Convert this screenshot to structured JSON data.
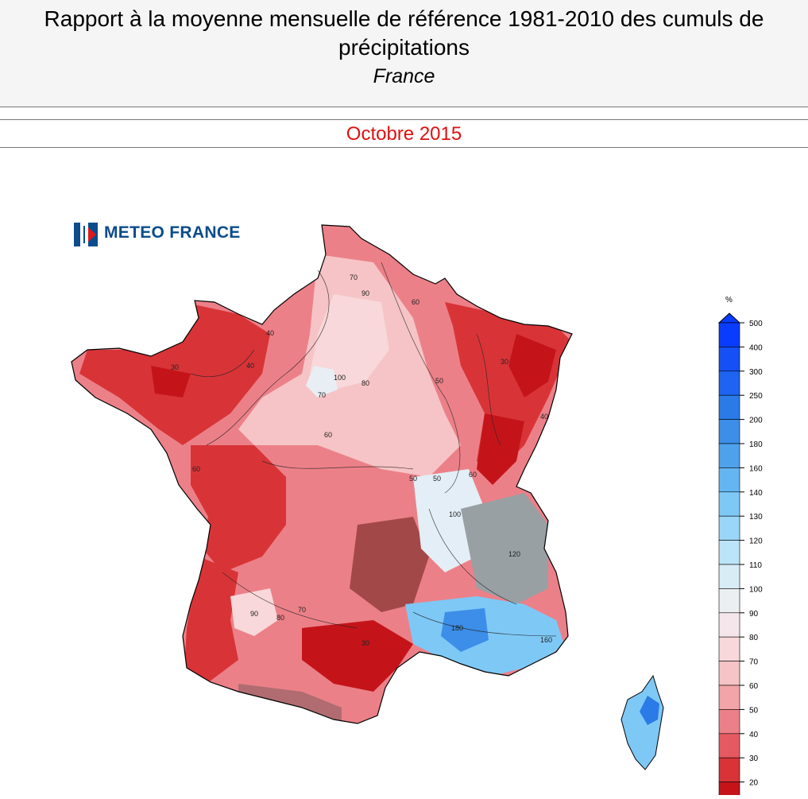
{
  "header": {
    "title": "Rapport à la moyenne mensuelle de référence 1981-2010 des cumuls de précipitations",
    "subtitle": "France"
  },
  "period": "Octobre 2015",
  "logo": {
    "text": "METEO FRANCE"
  },
  "legend": {
    "unit": "%",
    "bins": [
      {
        "label": "500",
        "color": "#0a3cff"
      },
      {
        "label": "400",
        "color": "#1450f5"
      },
      {
        "label": "300",
        "color": "#1e64f0"
      },
      {
        "label": "250",
        "color": "#2a7ae8"
      },
      {
        "label": "200",
        "color": "#3c8ee8"
      },
      {
        "label": "180",
        "color": "#4ea2ec"
      },
      {
        "label": "160",
        "color": "#64b6f2"
      },
      {
        "label": "140",
        "color": "#7ec8f6"
      },
      {
        "label": "130",
        "color": "#9ad6f8"
      },
      {
        "label": "120",
        "color": "#bce4f8"
      },
      {
        "label": "110",
        "color": "#d8ecf6"
      },
      {
        "label": "100",
        "color": "#eceff2"
      },
      {
        "label": "90",
        "color": "#f4e6ea"
      },
      {
        "label": "80",
        "color": "#f8d8da"
      },
      {
        "label": "70",
        "color": "#f6c4c6"
      },
      {
        "label": "60",
        "color": "#f2a4a8"
      },
      {
        "label": "50",
        "color": "#ec8088"
      },
      {
        "label": "40",
        "color": "#e45a60"
      },
      {
        "label": "30",
        "color": "#d83438"
      },
      {
        "label": "20",
        "color": "#c4141a"
      }
    ]
  },
  "contour_labels": [
    "90",
    "70",
    "60",
    "80",
    "50",
    "40",
    "100",
    "30",
    "40",
    "60",
    "50",
    "30",
    "40",
    "60",
    "70",
    "80",
    "90",
    "100",
    "120",
    "160",
    "180",
    "50",
    "60",
    "70",
    "30"
  ]
}
